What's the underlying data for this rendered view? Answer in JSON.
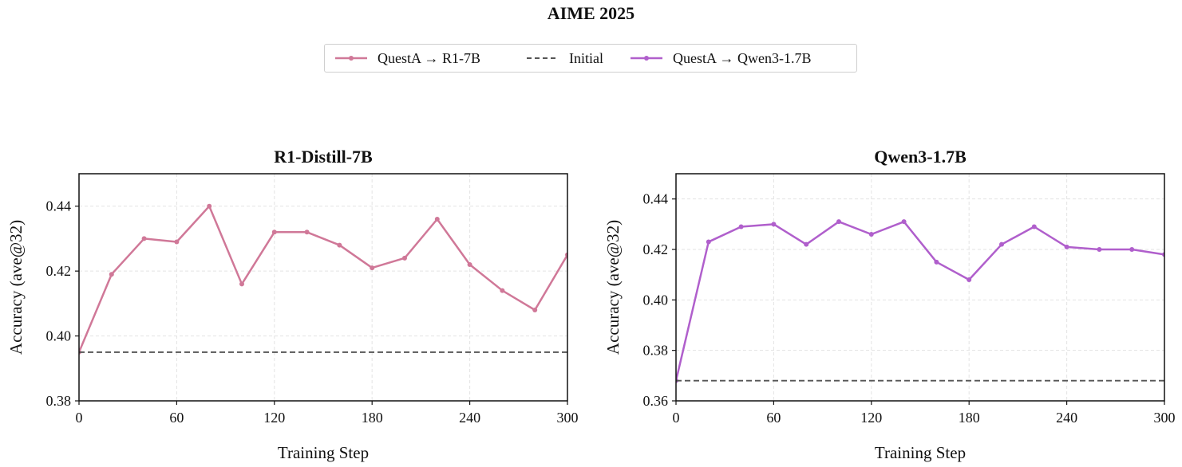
{
  "figure": {
    "suptitle": "AIME 2025",
    "colors": {
      "r1": "#d07898",
      "qwen": "#b05fcc",
      "initial": "#555555"
    },
    "legend": [
      {
        "label": "QuestA → R1-7B",
        "color": "#d07898",
        "style": "solid-marker"
      },
      {
        "label": "Initial",
        "color": "#555555",
        "style": "dashed"
      },
      {
        "label": "QuestA → Qwen3-1.7B",
        "color": "#b05fcc",
        "style": "solid-marker"
      }
    ]
  },
  "chart_data": [
    {
      "type": "line",
      "title": "R1-Distill-7B",
      "xlabel": "Training Step",
      "ylabel": "Accuracy (ave@32)",
      "xlim": [
        0,
        300
      ],
      "ylim": [
        0.38,
        0.45
      ],
      "xticks": [
        0,
        60,
        120,
        180,
        240,
        300
      ],
      "yticks": [
        0.38,
        0.4,
        0.42,
        0.44
      ],
      "ytick_labels": [
        "0.38",
        "0.40",
        "0.42",
        "0.44"
      ],
      "grid": true,
      "series": [
        {
          "name": "QuestA → R1-7B",
          "color": "#d07898",
          "x": [
            0,
            20,
            40,
            60,
            80,
            100,
            120,
            140,
            160,
            180,
            200,
            220,
            240,
            260,
            280,
            300
          ],
          "y": [
            0.395,
            0.419,
            0.43,
            0.429,
            0.44,
            0.416,
            0.432,
            0.432,
            0.428,
            0.421,
            0.424,
            0.436,
            0.422,
            0.414,
            0.408,
            0.425
          ]
        },
        {
          "name": "Initial",
          "color": "#555555",
          "dashed": true,
          "x": [
            0,
            300
          ],
          "y": [
            0.395,
            0.395
          ]
        }
      ]
    },
    {
      "type": "line",
      "title": "Qwen3-1.7B",
      "xlabel": "Training Step",
      "ylabel": "Accuracy (ave@32)",
      "xlim": [
        0,
        300
      ],
      "ylim": [
        0.36,
        0.45
      ],
      "xticks": [
        0,
        60,
        120,
        180,
        240,
        300
      ],
      "yticks": [
        0.36,
        0.38,
        0.4,
        0.42,
        0.44
      ],
      "ytick_labels": [
        "0.36",
        "0.38",
        "0.40",
        "0.42",
        "0.44"
      ],
      "grid": true,
      "series": [
        {
          "name": "QuestA → Qwen3-1.7B",
          "color": "#b05fcc",
          "x": [
            0,
            20,
            40,
            60,
            80,
            100,
            120,
            140,
            160,
            180,
            200,
            220,
            240,
            260,
            280,
            300
          ],
          "y": [
            0.368,
            0.423,
            0.429,
            0.43,
            0.422,
            0.431,
            0.426,
            0.431,
            0.415,
            0.408,
            0.422,
            0.429,
            0.421,
            0.42,
            0.42,
            0.418
          ]
        },
        {
          "name": "Initial",
          "color": "#555555",
          "dashed": true,
          "x": [
            0,
            300
          ],
          "y": [
            0.368,
            0.368
          ]
        }
      ]
    }
  ]
}
